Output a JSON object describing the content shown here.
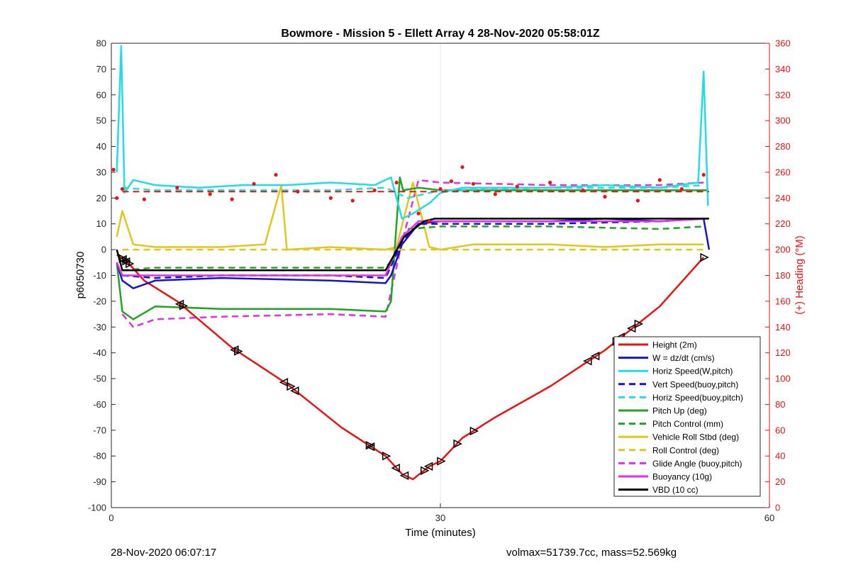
{
  "chart_data": {
    "type": "line",
    "title": "Bowmore - Mission 5 - Ellett Array 4 28-Nov-2020 05:58:01Z",
    "xlabel": "Time (minutes)",
    "ylabel": "p6050730",
    "y2label": "(+) Heading (°M)",
    "xlim": [
      0,
      60
    ],
    "ylim": [
      -100,
      80
    ],
    "y2lim": [
      0,
      360
    ],
    "xticks": [
      "0",
      "30",
      "60"
    ],
    "yticks": [
      "80",
      "70",
      "60",
      "50",
      "40",
      "30",
      "20",
      "10",
      "0",
      "-10",
      "-20",
      "-30",
      "-40",
      "-50",
      "-60",
      "-70",
      "-80",
      "-90",
      "-100"
    ],
    "y2ticks": [
      "360",
      "340",
      "320",
      "300",
      "280",
      "260",
      "240",
      "220",
      "200",
      "180",
      "160",
      "140",
      "120",
      "100",
      "80",
      "60",
      "40",
      "20",
      "0"
    ],
    "grid": "x-major",
    "legend_position": "lower-right",
    "colors": {
      "height": "#ee1111",
      "w": "#1515c8",
      "horiz_w_pitch": "#22dde6",
      "pitch_up": "#1fa51f",
      "roll": "#e5c51b",
      "glide": "#e52ee5",
      "buoyancy": "#e52ee5",
      "vbd": "#000000",
      "heading_axis": "#ee1111"
    },
    "series": [
      {
        "name": "Height (2m)",
        "key": "height",
        "style": "solid",
        "x": [
          0.5,
          1.5,
          3,
          6,
          11,
          16,
          21,
          25,
          26.5,
          27.5,
          29,
          30,
          32,
          35,
          40,
          45,
          50,
          54
        ],
        "y": [
          -2,
          -5,
          -12,
          -20,
          -38,
          -52,
          -69,
          -80,
          -87,
          -89,
          -84,
          -82,
          -73,
          -65,
          -53,
          -39,
          -22,
          -3
        ]
      },
      {
        "name": "W = dz/dt (cm/s)",
        "key": "w",
        "style": "solid",
        "x": [
          0.5,
          1,
          2,
          4,
          10,
          20,
          25,
          25.5,
          26.5,
          28,
          30,
          35,
          40,
          45,
          50,
          54,
          54.5
        ],
        "y": [
          -5,
          -12,
          -15,
          -12,
          -11,
          -12,
          -13,
          -10,
          2,
          10,
          11,
          11,
          11,
          12,
          11,
          12,
          0
        ]
      },
      {
        "name": "Horiz Speed(W,pitch)",
        "key": "horiz_w_pitch",
        "style": "solid",
        "x": [
          0.5,
          0.9,
          1.2,
          2,
          4,
          8,
          12,
          16,
          20,
          24,
          25.5,
          26.5,
          27.5,
          29,
          30,
          32,
          36,
          40,
          45,
          50,
          53.5,
          54,
          54.4
        ],
        "y": [
          30,
          79,
          22,
          27,
          25,
          24,
          25,
          25,
          26,
          25,
          28,
          12,
          14,
          18,
          22,
          24,
          24,
          24,
          25,
          24,
          26,
          69,
          17
        ]
      },
      {
        "name": "Vert Speed(buoy,pitch)",
        "key": "w",
        "style": "dashed",
        "x": [
          1,
          4,
          10,
          20,
          25,
          26.5,
          28,
          30,
          40,
          50,
          54
        ],
        "y": [
          -10,
          -11,
          -10,
          -10,
          -11,
          3,
          10,
          10,
          10,
          11,
          12
        ]
      },
      {
        "name": "Horiz Speed(buoy,pitch)",
        "key": "horiz_w_pitch",
        "style": "dashed",
        "x": [
          1,
          4,
          10,
          20,
          25,
          27,
          30,
          40,
          50,
          54
        ],
        "y": [
          24,
          23,
          23,
          23,
          24,
          20,
          23,
          24,
          24,
          25
        ]
      },
      {
        "name": "Pitch Up (deg)",
        "key": "pitch_up",
        "style": "solid",
        "x": [
          0.5,
          1,
          2,
          4,
          10,
          20,
          25,
          25.5,
          26.3,
          26.6,
          28,
          30,
          40,
          50,
          54.4
        ],
        "y": [
          -5,
          -24,
          -27,
          -22,
          -23,
          -23,
          -24,
          -20,
          28,
          23,
          24,
          23,
          23,
          23,
          23
        ]
      },
      {
        "name": "Pitch Control (mm)",
        "key": "pitch_up",
        "style": "dashed",
        "x": [
          1,
          4,
          10,
          20,
          25,
          26,
          27,
          30,
          40,
          50,
          54
        ],
        "y": [
          -8,
          -7,
          -7,
          -7,
          -7,
          -2,
          8,
          9,
          9,
          8,
          9
        ]
      },
      {
        "name": "Vehicle Roll Stbd (deg)",
        "key": "roll",
        "style": "solid",
        "x": [
          0.5,
          1,
          2,
          4,
          10,
          14,
          15.5,
          16,
          20,
          25,
          26,
          27.5,
          29,
          30,
          33,
          40,
          45,
          50,
          54
        ],
        "y": [
          5,
          15,
          2,
          1,
          1,
          2,
          25,
          0,
          1,
          0,
          1,
          26,
          1,
          0,
          2,
          2,
          1,
          2,
          2
        ]
      },
      {
        "name": "Roll Control (deg)",
        "key": "roll",
        "style": "dashed",
        "x": [
          1,
          5,
          10,
          15,
          20,
          25,
          30,
          35,
          40,
          45,
          50,
          54
        ],
        "y": [
          0,
          0,
          0,
          0,
          0,
          0,
          0,
          0,
          0,
          0,
          0,
          0
        ]
      },
      {
        "name": "Glide Angle (buoy,pitch)",
        "key": "glide",
        "style": "dashed",
        "x": [
          1,
          2,
          4,
          10,
          20,
          25,
          26.5,
          28,
          30,
          40,
          50,
          54
        ],
        "y": [
          -25,
          -30,
          -27,
          -26,
          -25,
          -26,
          3,
          27,
          26,
          25,
          25,
          26
        ]
      },
      {
        "name": "Buoyancy (10g)",
        "key": "buoyancy",
        "style": "solid",
        "x": [
          0.5,
          1,
          3,
          10,
          20,
          25,
          26.5,
          28,
          30,
          40,
          50,
          54.4
        ],
        "y": [
          -5,
          -10,
          -10,
          -10,
          -10,
          -10,
          5,
          11,
          11,
          11,
          11,
          12
        ]
      },
      {
        "name": "VBD (10 cc)",
        "key": "vbd",
        "style": "solid",
        "x": [
          0.5,
          1,
          25,
          26.7,
          28.5,
          29.5,
          54.5
        ],
        "y": [
          0,
          -8,
          -8,
          5,
          11,
          12,
          12
        ]
      }
    ],
    "heading": {
      "x": [
        0.2,
        0.5,
        1,
        3,
        6,
        9,
        11,
        13,
        15,
        17,
        20,
        22,
        24,
        26,
        28,
        29,
        30,
        31,
        32,
        33,
        35,
        37,
        40,
        43,
        45,
        48,
        50,
        52,
        54
      ],
      "y": [
        262,
        240,
        247,
        239,
        248,
        243,
        239,
        251,
        258,
        245,
        240,
        238,
        246,
        252,
        228,
        222,
        247,
        253,
        264,
        251,
        243,
        249,
        252,
        246,
        241,
        238,
        254,
        247,
        258
      ]
    },
    "heading_target": 245,
    "annotations": {
      "right_triangles_x": [
        1,
        1.3,
        1.6,
        6.5,
        11.5,
        16.3,
        23.5,
        25,
        28.5,
        30,
        31.5,
        33,
        46,
        48,
        54
      ],
      "left_triangles_x": [
        1.1,
        1.4,
        6.3,
        11.3,
        15.8,
        16.8,
        23.7,
        26,
        26.8,
        29,
        43.5,
        44.2,
        46.5,
        47.5
      ]
    }
  },
  "footer": {
    "left": "28-Nov-2020 06:07:17",
    "right": "volmax=51739.7cc, mass=52.569kg"
  }
}
